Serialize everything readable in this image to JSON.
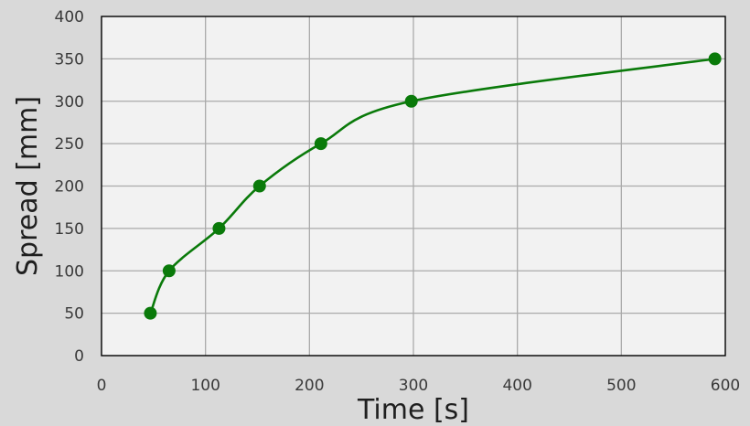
{
  "chart_data": {
    "type": "line",
    "title": "",
    "xlabel": "Time [s]",
    "ylabel": "Spread [mm]",
    "xlim": [
      0,
      600
    ],
    "ylim": [
      0,
      400
    ],
    "x_ticks": [
      0,
      100,
      200,
      300,
      400,
      500,
      600
    ],
    "y_ticks": [
      0,
      50,
      100,
      150,
      200,
      250,
      300,
      350,
      400
    ],
    "grid": true,
    "smooth": true,
    "series": [
      {
        "x": [
          47,
          65,
          113,
          152,
          211,
          298,
          590
        ],
        "y": [
          50,
          100,
          150,
          200,
          250,
          300,
          350
        ]
      }
    ],
    "colors": {
      "series": "#0a7a0a",
      "plot_background": "#f2f2f2",
      "page_background": "#d9d9d9",
      "grid": "#aaaaaa",
      "axis": "#000000"
    }
  }
}
